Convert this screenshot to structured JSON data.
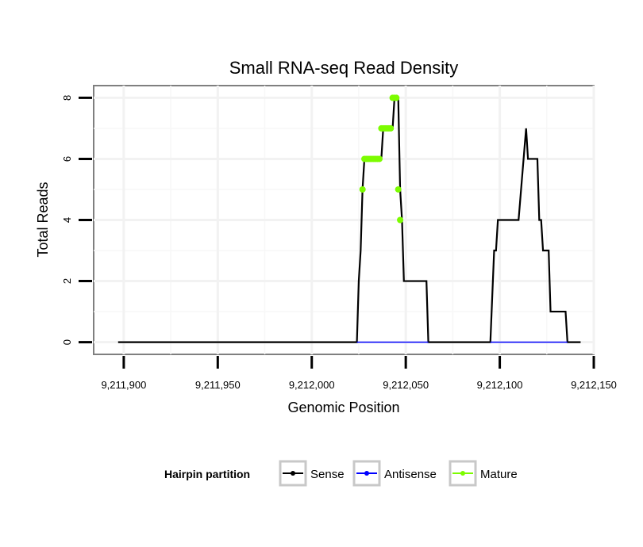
{
  "chart_data": {
    "type": "line",
    "title": "Small RNA-seq Read Density",
    "xlabel": "Genomic Position",
    "ylabel": "Total Reads",
    "xlim": [
      9211884,
      9212150
    ],
    "ylim": [
      -0.4,
      8.4
    ],
    "x_ticks": [
      9211900,
      9211950,
      9212000,
      9212050,
      9212100,
      9212150
    ],
    "x_tick_labels": [
      "9,211,900",
      "9,211,950",
      "9,212,000",
      "9,212,050",
      "9,212,100",
      "9,212,150"
    ],
    "y_ticks": [
      0,
      2,
      4,
      6,
      8
    ],
    "y_tick_labels": [
      "0",
      "2",
      "4",
      "6",
      "8"
    ],
    "grid": true,
    "legend": {
      "title": "Hairpin partition",
      "position": "bottom",
      "entries": [
        {
          "name": "Sense",
          "color": "#000000"
        },
        {
          "name": "Antisense",
          "color": "#0000ff"
        },
        {
          "name": "Mature",
          "color": "#7cfc00"
        }
      ]
    },
    "series": [
      {
        "name": "Sense",
        "color": "#000000",
        "points": [
          [
            9211897,
            0
          ],
          [
            9212024,
            0
          ],
          [
            9212025,
            2
          ],
          [
            9212026,
            3
          ],
          [
            9212027,
            5
          ],
          [
            9212028,
            6
          ],
          [
            9212037,
            6
          ],
          [
            9212038,
            7
          ],
          [
            9212043,
            7
          ],
          [
            9212044,
            8
          ],
          [
            9212046,
            8
          ],
          [
            9212047,
            5
          ],
          [
            9212048,
            4
          ],
          [
            9212049,
            2
          ],
          [
            9212061,
            2
          ],
          [
            9212062,
            0
          ],
          [
            9212095,
            0
          ],
          [
            9212097,
            3
          ],
          [
            9212098,
            3
          ],
          [
            9212099,
            4
          ],
          [
            9212110,
            4
          ],
          [
            9212114,
            7
          ],
          [
            9212115,
            6
          ],
          [
            9212120,
            6
          ],
          [
            9212121,
            4
          ],
          [
            9212122,
            4
          ],
          [
            9212123,
            3
          ],
          [
            9212126,
            3
          ],
          [
            9212127,
            1
          ],
          [
            9212135,
            1
          ],
          [
            9212136,
            0
          ],
          [
            9212143,
            0
          ]
        ]
      },
      {
        "name": "Antisense",
        "color": "#0000ff",
        "points": [
          [
            9212024,
            0
          ],
          [
            9212062,
            0
          ],
          [
            9212095,
            0
          ],
          [
            9212136,
            0
          ]
        ]
      },
      {
        "name": "Mature",
        "color": "#7cfc00",
        "points": [
          [
            9212027,
            5
          ],
          [
            9212028,
            6
          ],
          [
            9212029,
            6
          ],
          [
            9212030,
            6
          ],
          [
            9212031,
            6
          ],
          [
            9212032,
            6
          ],
          [
            9212033,
            6
          ],
          [
            9212034,
            6
          ],
          [
            9212035,
            6
          ],
          [
            9212036,
            6
          ],
          [
            9212037,
            7
          ],
          [
            9212038,
            7
          ],
          [
            9212039,
            7
          ],
          [
            9212040,
            7
          ],
          [
            9212041,
            7
          ],
          [
            9212042,
            7
          ],
          [
            9212043,
            8
          ],
          [
            9212044,
            8
          ],
          [
            9212045,
            8
          ],
          [
            9212046,
            5
          ],
          [
            9212047,
            4
          ]
        ]
      }
    ]
  }
}
